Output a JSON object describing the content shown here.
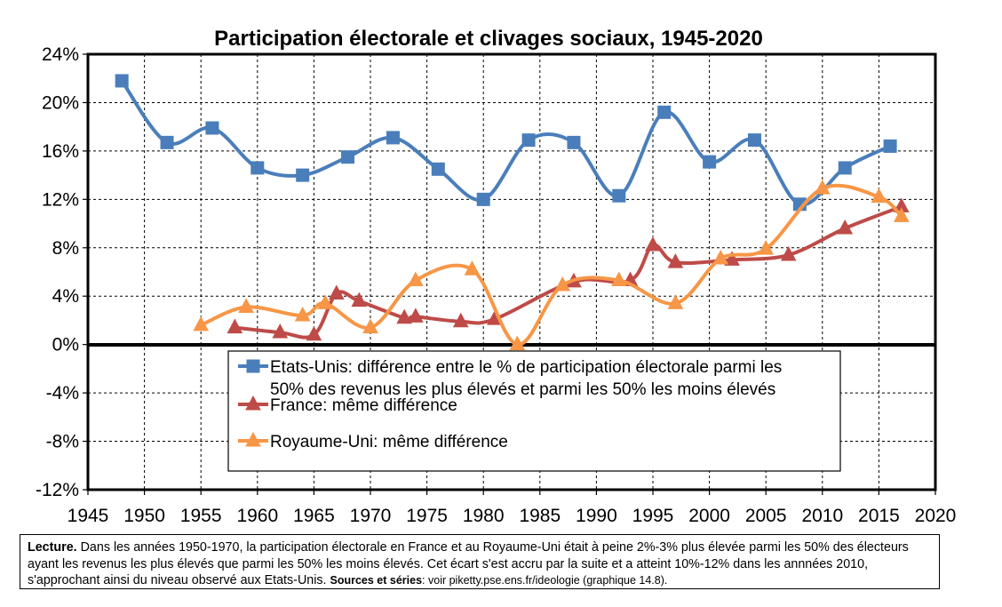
{
  "chart_data": {
    "type": "line",
    "title": "Participation électorale et clivages sociaux, 1945-2020",
    "xlabel": "",
    "ylabel": "",
    "xlim": [
      1945,
      2020
    ],
    "ylim": [
      -12,
      24
    ],
    "x_ticks": [
      "1945",
      "1950",
      "1955",
      "1960",
      "1965",
      "1970",
      "1975",
      "1980",
      "1985",
      "1990",
      "1995",
      "2000",
      "2005",
      "2010",
      "2015",
      "2020"
    ],
    "y_ticks": [
      "24%",
      "20%",
      "16%",
      "12%",
      "8%",
      "4%",
      "0%",
      "-4%",
      "-8%",
      "-12%"
    ],
    "grid": true,
    "legend_position": "center-bottom inside plot",
    "series": [
      {
        "name_lines": [
          "Etats-Unis: différence entre le % de participation électorale parmi les",
          "50% des revenus les plus élevés et parmi les 50% les moins élevés"
        ],
        "marker": "square",
        "color": "#4A7EBB",
        "points": [
          [
            1948,
            21.8
          ],
          [
            1952,
            16.7
          ],
          [
            1956,
            17.9
          ],
          [
            1960,
            14.6
          ],
          [
            1964,
            14.0
          ],
          [
            1968,
            15.5
          ],
          [
            1972,
            17.1
          ],
          [
            1976,
            14.5
          ],
          [
            1980,
            12.0
          ],
          [
            1984,
            16.9
          ],
          [
            1988,
            16.7
          ],
          [
            1992,
            12.3
          ],
          [
            1996,
            19.2
          ],
          [
            2000,
            15.1
          ],
          [
            2004,
            16.9
          ],
          [
            2008,
            11.6
          ],
          [
            2012,
            14.6
          ],
          [
            2016,
            16.4
          ]
        ]
      },
      {
        "name_lines": [
          "France: même différence"
        ],
        "marker": "triangle",
        "color": "#BE4B48",
        "points": [
          [
            1958,
            1.4
          ],
          [
            1962,
            1.0
          ],
          [
            1965,
            0.8
          ],
          [
            1967,
            4.2
          ],
          [
            1969,
            3.6
          ],
          [
            1973,
            2.2
          ],
          [
            1974,
            2.3
          ],
          [
            1978,
            1.9
          ],
          [
            1981,
            2.1
          ],
          [
            1988,
            5.2
          ],
          [
            1993,
            5.3
          ],
          [
            1995,
            8.2
          ],
          [
            1997,
            6.8
          ],
          [
            2002,
            7.0
          ],
          [
            2007,
            7.4
          ],
          [
            2012,
            9.6
          ],
          [
            2017,
            11.4
          ]
        ]
      },
      {
        "name_lines": [
          "Royaume-Uni: même différence"
        ],
        "marker": "triangle",
        "color": "#F79646",
        "points": [
          [
            1955,
            1.6
          ],
          [
            1959,
            3.1
          ],
          [
            1964,
            2.4
          ],
          [
            1966,
            3.4
          ],
          [
            1970,
            1.4
          ],
          [
            1974,
            5.3
          ],
          [
            1979,
            6.2
          ],
          [
            1983,
            0.0
          ],
          [
            1987,
            4.9
          ],
          [
            1992,
            5.3
          ],
          [
            1997,
            3.4
          ],
          [
            2001,
            7.1
          ],
          [
            2005,
            7.9
          ],
          [
            2010,
            12.9
          ],
          [
            2015,
            12.2
          ],
          [
            2017,
            10.6
          ]
        ]
      }
    ]
  },
  "note": {
    "lead_label": "Lecture.",
    "body": " Dans les années 1950-1970, la participation électorale en France et au Royaume-Uni était à peine 2%-3% plus élevée parmi les 50% des électeurs ayant les revenus les plus élevés que parmi les 50% les moins élevés. Cet écart s'est accru par la suite et a atteint 10%-12% dans les annnées 2010, s'approchant ainsi du niveau observé aux Etats-Unis. ",
    "sources_label": "Sources et séries",
    "sources_text": ": voir piketty.pse.ens.fr/ideologie (graphique 14.8)."
  }
}
